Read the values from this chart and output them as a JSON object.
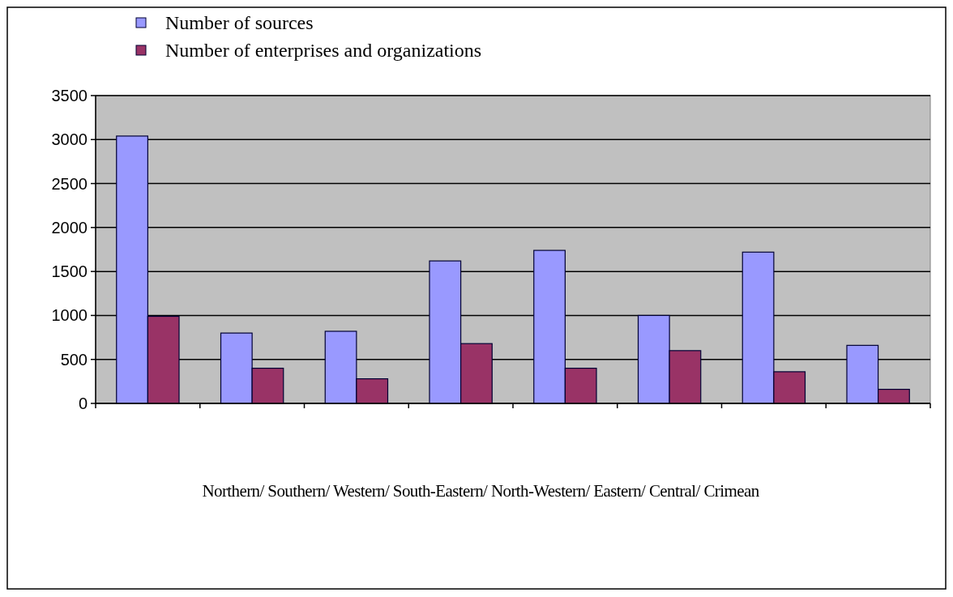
{
  "chart_data": {
    "type": "bar",
    "categories": [
      null,
      null,
      null,
      null,
      null,
      null,
      null,
      null
    ],
    "xlabel": "Northern/ Southern/ Western/ South-Eastern/ North-Western/ Eastern/ Central/ Crimean",
    "series": [
      {
        "name": "Number of sources",
        "color": "#9999ff",
        "values": [
          3040,
          800,
          820,
          1620,
          1740,
          1000,
          1720,
          660
        ]
      },
      {
        "name": "Number of enterprises and organizations",
        "color": "#993366",
        "values": [
          990,
          400,
          280,
          680,
          400,
          600,
          360,
          160
        ]
      }
    ],
    "ylim": [
      0,
      3500
    ],
    "yticks": [
      0,
      500,
      1000,
      1500,
      2000,
      2500,
      3000,
      3500
    ],
    "grid": "y",
    "legend": "top left"
  }
}
